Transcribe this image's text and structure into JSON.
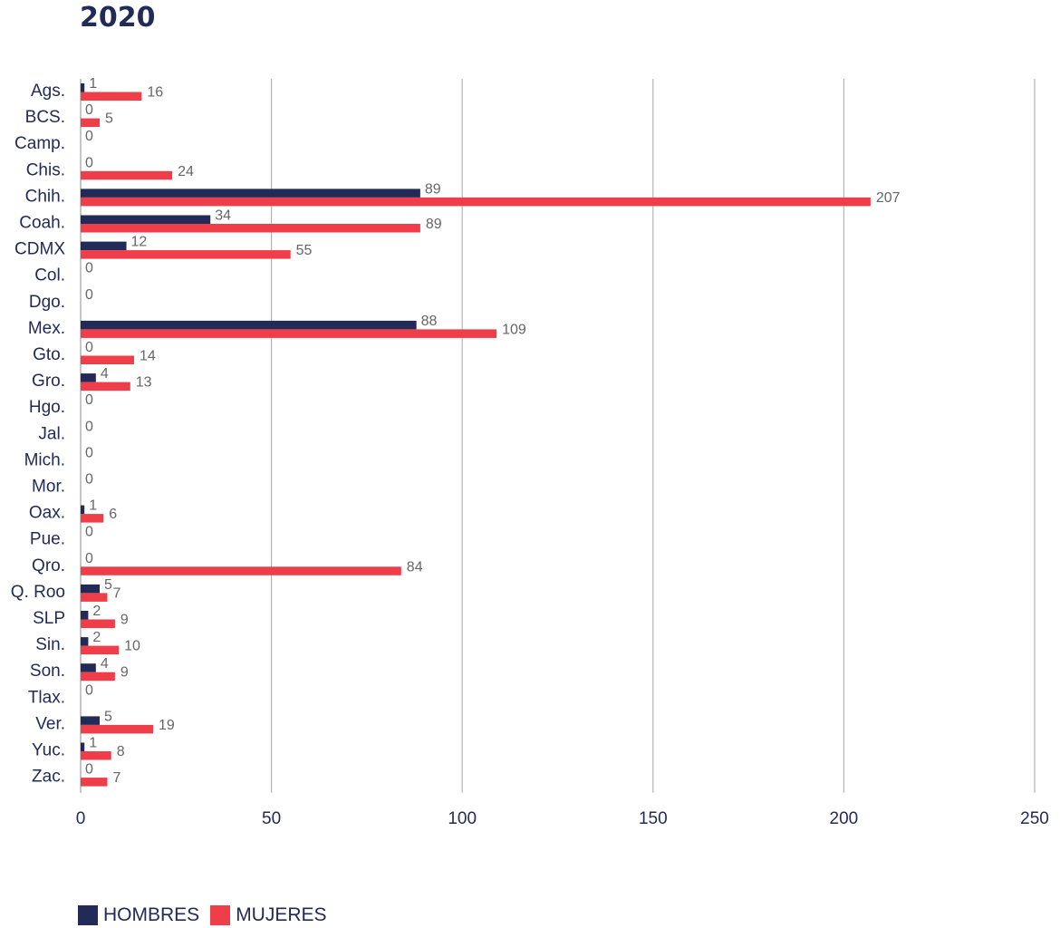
{
  "colors": {
    "hombres": "#222b58",
    "mujeres": "#ef3e4a",
    "grid": "#b4b4b4",
    "category_text": "#222b58",
    "value_text": "#666666"
  },
  "chart_data": {
    "type": "bar",
    "orientation": "horizontal",
    "title": "2020",
    "xlim": [
      0,
      250
    ],
    "x_ticks": [
      "0",
      "50",
      "100",
      "150",
      "200",
      "250"
    ],
    "grid": true,
    "legend_position": "bottom-left",
    "categories": [
      "Ags.",
      "BCS.",
      "Camp.",
      "Chis.",
      "Chih.",
      "Coah.",
      "CDMX",
      "Col.",
      "Dgo.",
      "Mex.",
      "Gto.",
      "Gro.",
      "Hgo.",
      "Jal.",
      "Mich.",
      "Mor.",
      "Oax.",
      "Pue.",
      "Qro.",
      "Q. Roo",
      "SLP",
      "Sin.",
      "Son.",
      "Tlax.",
      "Ver.",
      "Yuc.",
      "Zac."
    ],
    "series": [
      {
        "name": "HOMBRES",
        "values": [
          1,
          0,
          0,
          0,
          89,
          34,
          12,
          0,
          0,
          88,
          0,
          4,
          0,
          0,
          0,
          0,
          1,
          0,
          0,
          5,
          2,
          2,
          4,
          0,
          5,
          1,
          0
        ]
      },
      {
        "name": "MUJERES",
        "values": [
          16,
          5,
          null,
          24,
          207,
          89,
          55,
          null,
          null,
          109,
          14,
          13,
          null,
          null,
          null,
          null,
          6,
          null,
          84,
          7,
          9,
          10,
          9,
          null,
          19,
          8,
          7
        ]
      }
    ]
  }
}
